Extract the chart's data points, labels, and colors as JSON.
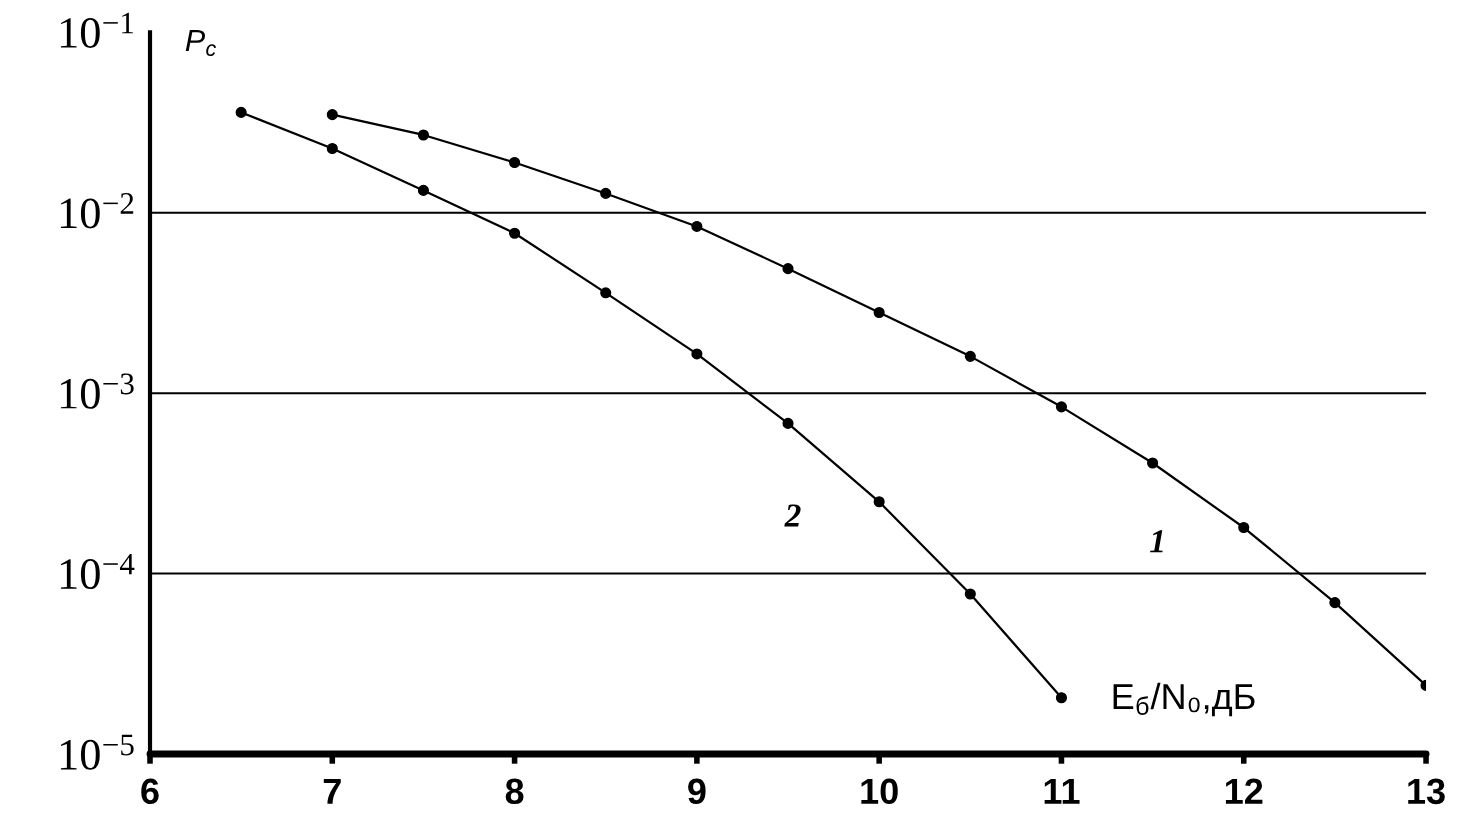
{
  "chart_data": {
    "type": "line",
    "xlabel": "E$_{б}$/N₀,дБ",
    "ylabel": "P$_{c}$",
    "log": "y",
    "grid": "y",
    "marker": "circle",
    "line_style": "solid",
    "xlim": [
      6,
      13
    ],
    "xticks": [
      6,
      7,
      8,
      9,
      10,
      11,
      12,
      13
    ],
    "ylim": [
      1e-05,
      0.1
    ],
    "yticks": [
      {
        "value": 0.1,
        "label": "10$^{−1}$"
      },
      {
        "value": 0.01,
        "label": "10$^{−2}$"
      },
      {
        "value": 0.001,
        "label": "10$^{−3}$"
      },
      {
        "value": 0.0001,
        "label": "10$^{−4}$"
      },
      {
        "value": 1e-05,
        "label": "10$^{−5}$"
      }
    ],
    "series": [
      {
        "name": "1",
        "color": "#000000",
        "x": [
          7,
          7.5,
          8,
          8.5,
          9,
          9.5,
          10,
          10.5,
          11,
          11.5,
          12,
          12.5,
          13
        ],
        "values": [
          0.035,
          0.027,
          0.019,
          0.0128,
          0.0084,
          0.0049,
          0.0028,
          0.0016,
          0.00084,
          0.00041,
          0.00018,
          6.9e-05,
          2.4e-05
        ]
      },
      {
        "name": "2",
        "color": "#000000",
        "x": [
          6.5,
          7,
          7.5,
          8,
          8.5,
          9,
          9.5,
          10,
          10.5,
          11
        ],
        "values": [
          0.036,
          0.0227,
          0.0133,
          0.0077,
          0.0036,
          0.00165,
          0.00068,
          0.00025,
          7.7e-05,
          2.05e-05
        ]
      }
    ]
  }
}
